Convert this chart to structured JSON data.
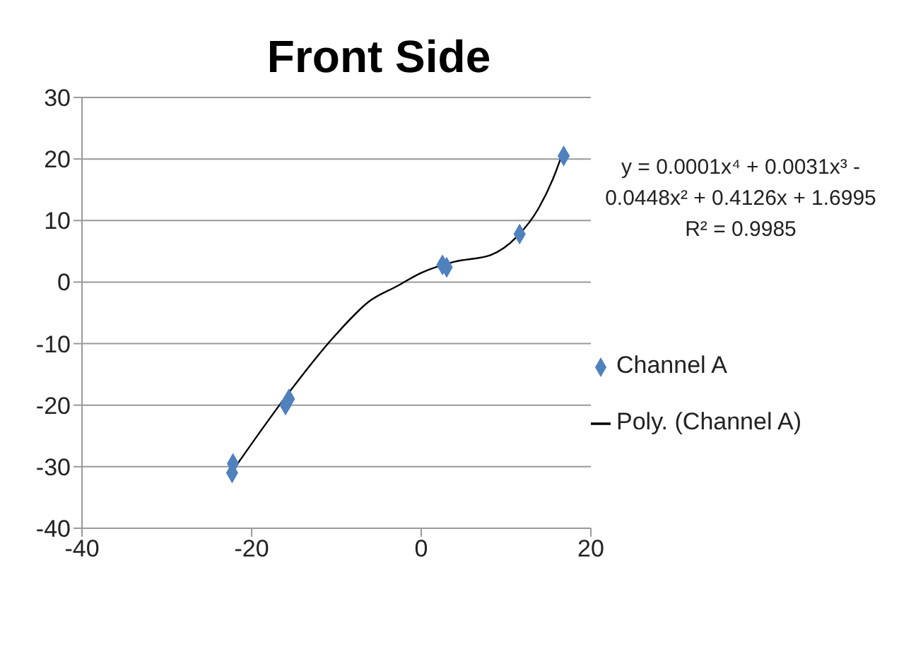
{
  "chart_data": {
    "type": "scatter",
    "title": "Front Side",
    "annotations": [
      "y = 0.0001x⁴ + 0.0031x³ - 0.0448x² + 0.4126x + 1.6995",
      "R² = 0.9985"
    ],
    "series": [
      {
        "name": "Channel A",
        "color": "#4f81bd",
        "marker": "diamond",
        "x": [
          -22.2,
          -22.3,
          -15.6,
          -16,
          2.5,
          3,
          11.6,
          16.8
        ],
        "values": [
          -29.5,
          -31,
          -19,
          -20,
          2.8,
          2.4,
          7.8,
          20.5
        ]
      },
      {
        "name": "Poly. (Channel A)",
        "type": "line",
        "color": "#000000",
        "marker": "none",
        "x": [
          -22.1,
          -15.9,
          -10.3,
          -6,
          -2.9,
          0,
          3.9,
          8.2,
          11.3,
          13.8,
          15.6,
          16.6
        ],
        "values": [
          -30.4,
          -18.5,
          -8.9,
          -3,
          -0.7,
          1.5,
          3.3,
          4.4,
          7.4,
          11.9,
          17,
          20.7
        ]
      }
    ],
    "xlim": [
      -40,
      20
    ],
    "xticks": [
      -40,
      -20,
      0,
      20
    ],
    "ylim": [
      -40,
      30
    ],
    "yticks": [
      -40,
      -30,
      -20,
      -10,
      0,
      10,
      20,
      30
    ],
    "grid": "y",
    "legend": "right"
  }
}
